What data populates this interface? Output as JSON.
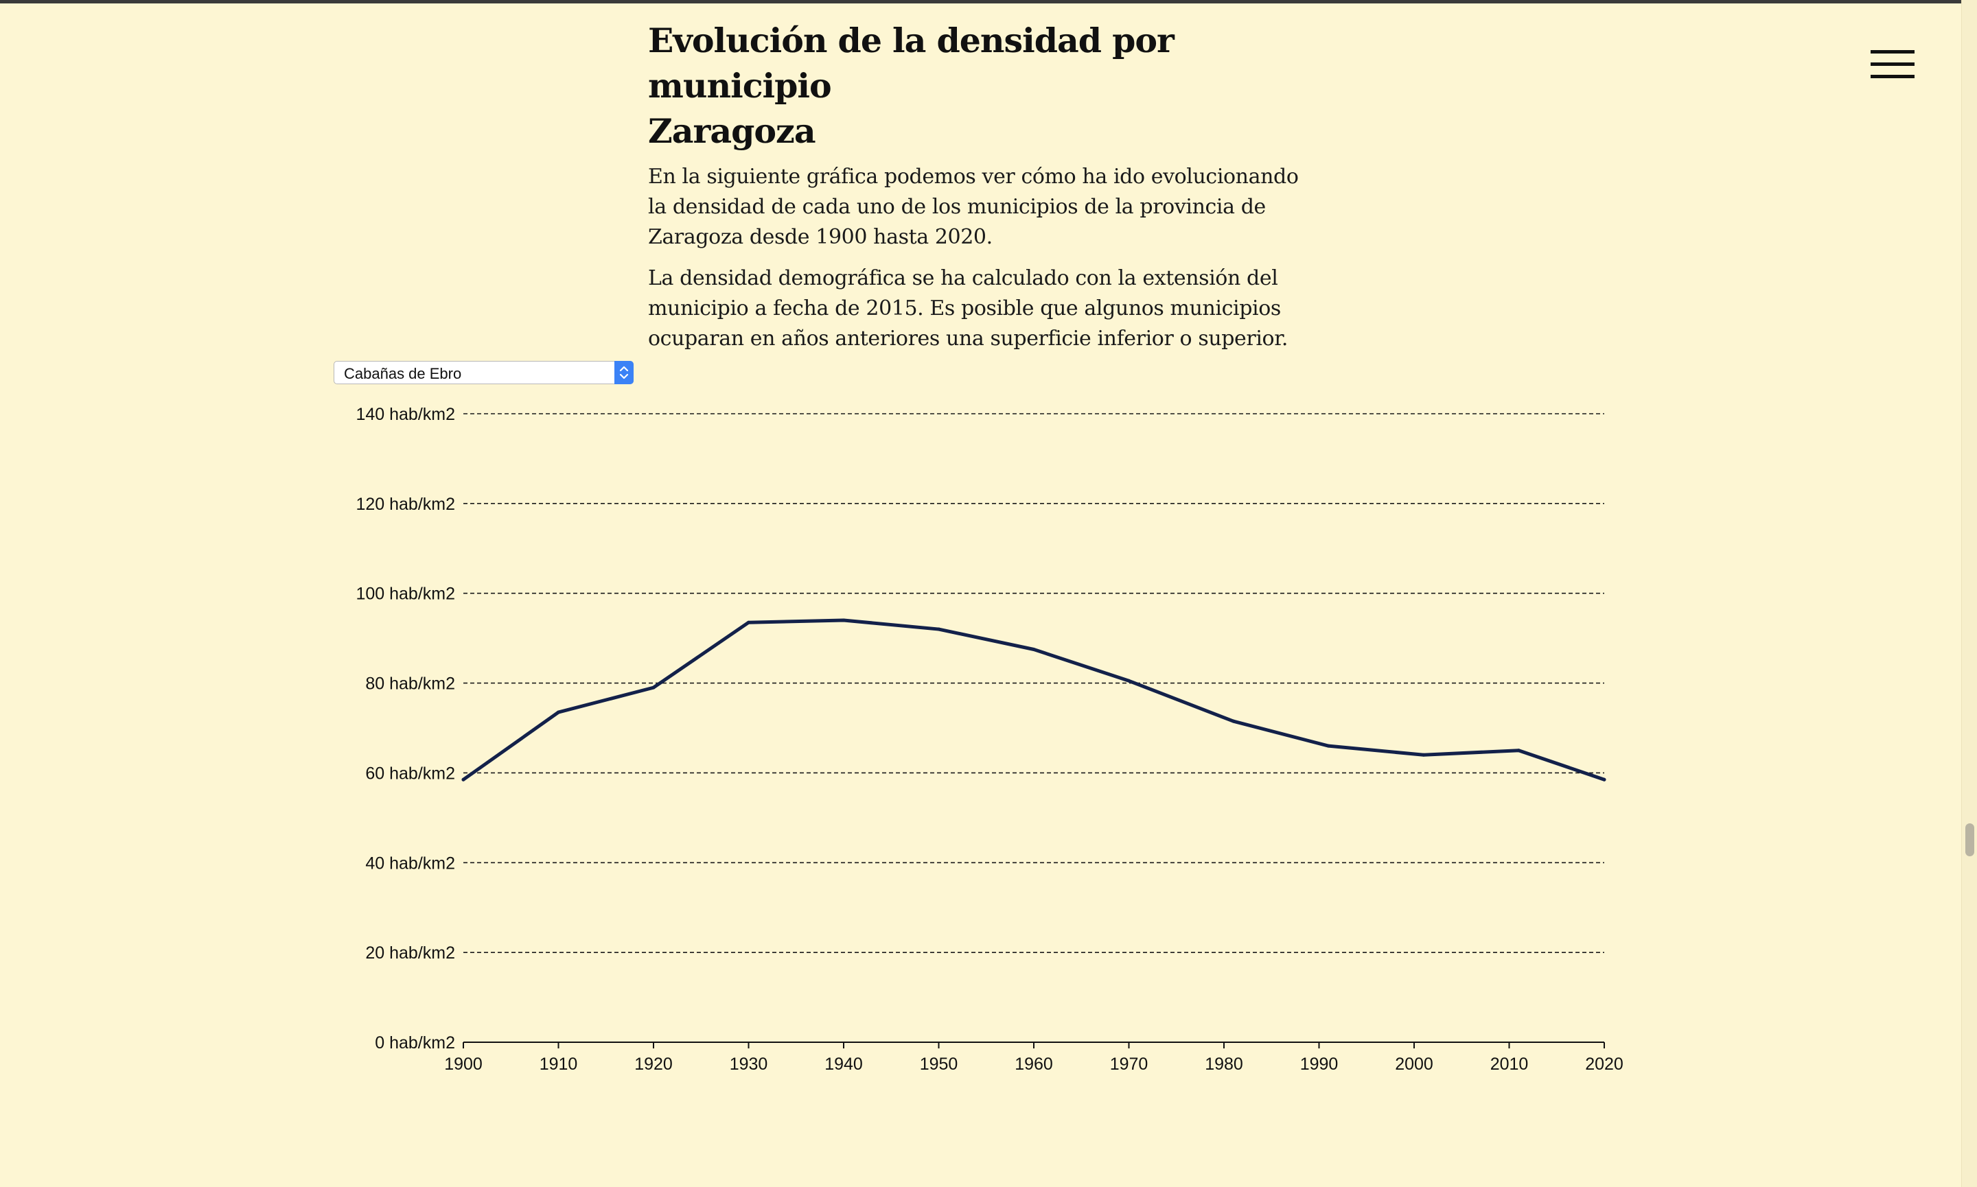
{
  "header": {
    "title_line1": "Evolución de la densidad por municipio",
    "title_line2": "Zaragoza"
  },
  "intro": {
    "paragraph1": "En la siguiente gráfica podemos ver cómo ha ido evolucionando la densidad de cada uno de los municipios de la provincia de Zaragoza desde 1900 hasta 2020.",
    "paragraph2": "La densidad demográfica se ha calculado con la extensión del municipio a fecha de 2015. Es posible que algunos municipios ocuparan en años anteriores una superficie inferior o superior."
  },
  "controls": {
    "municipality_select": "Cabañas de Ebro"
  },
  "menu": {
    "icon": "hamburger-menu-icon"
  },
  "colors": {
    "background": "#fdf6d3",
    "line": "#13214a",
    "select_accent": "#3b82f6"
  },
  "chart_data": {
    "type": "line",
    "title": "",
    "xlabel": "",
    "ylabel": "",
    "y_unit": "hab/km2",
    "ylim": [
      0,
      140
    ],
    "y_ticks": [
      0,
      20,
      40,
      60,
      80,
      100,
      120,
      140
    ],
    "y_tick_labels": [
      "0 hab/km2",
      "20 hab/km2",
      "40 hab/km2",
      "60 hab/km2",
      "80 hab/km2",
      "100 hab/km2",
      "120 hab/km2",
      "140 hab/km2"
    ],
    "xlim": [
      1900,
      2020
    ],
    "x_ticks": [
      1900,
      1910,
      1920,
      1930,
      1940,
      1950,
      1960,
      1970,
      1980,
      1990,
      2000,
      2010,
      2020
    ],
    "x_tick_labels": [
      "1900",
      "1910",
      "1920",
      "1930",
      "1940",
      "1950",
      "1960",
      "1970",
      "1980",
      "1990",
      "2000",
      "2010",
      "2020"
    ],
    "grid": "horizontal dashed",
    "legend": "none",
    "series": [
      {
        "x": [
          1900,
          1910,
          1920,
          1930,
          1940,
          1950,
          1960,
          1970,
          1981,
          1991,
          2001,
          2011,
          2020
        ],
        "values": [
          58.5,
          73.5,
          79,
          93.5,
          94,
          92,
          87.5,
          80.5,
          71.5,
          66,
          64,
          65,
          58.5
        ]
      }
    ]
  }
}
